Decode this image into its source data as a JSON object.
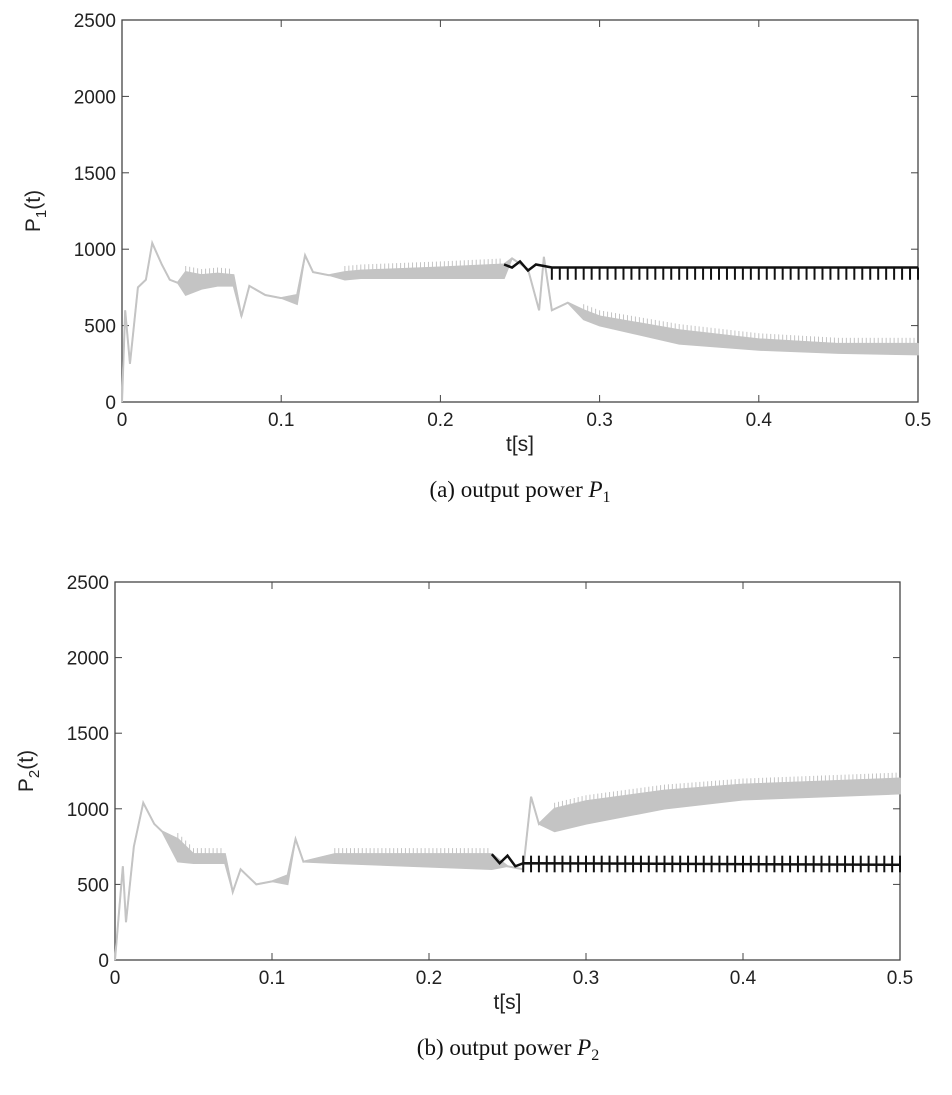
{
  "chart_data": [
    {
      "type": "line",
      "caption": "(a)  output power",
      "caption_symbol": "P",
      "caption_sub": "1",
      "xlabel": "t[s]",
      "ylabel": "P",
      "ylabel_sub": "1",
      "ylabel_suffix": "(t)",
      "xlim": [
        0,
        0.5
      ],
      "ylim": [
        0,
        2500
      ],
      "xticks": [
        "0",
        "0.1",
        "0.2",
        "0.3",
        "0.4",
        "0.5"
      ],
      "yticks": [
        "0",
        "500",
        "1000",
        "1500",
        "2000",
        "2500"
      ],
      "grid": false,
      "colors": {
        "gray_series": "#c4c4c4",
        "black_series": "#111111"
      },
      "series": [
        {
          "color": "gray",
          "points": [
            [
              0,
              0,
              0
            ],
            [
              0.002,
              600,
              600
            ],
            [
              0.005,
              250,
              250
            ],
            [
              0.01,
              750,
              750
            ],
            [
              0.015,
              800,
              800
            ],
            [
              0.019,
              1040,
              1040
            ],
            [
              0.025,
              900,
              900
            ],
            [
              0.03,
              800,
              800
            ],
            [
              0.035,
              780,
              780
            ],
            [
              0.04,
              850,
              700
            ],
            [
              0.05,
              830,
              740
            ],
            [
              0.06,
              840,
              760
            ],
            [
              0.07,
              830,
              760
            ],
            [
              0.075,
              560,
              560
            ],
            [
              0.08,
              760,
              760
            ],
            [
              0.09,
              700,
              700
            ],
            [
              0.1,
              680,
              680
            ],
            [
              0.11,
              700,
              640
            ],
            [
              0.115,
              960,
              960
            ],
            [
              0.12,
              850,
              850
            ],
            [
              0.13,
              830,
              830
            ],
            [
              0.14,
              850,
              800
            ],
            [
              0.15,
              860,
              810
            ],
            [
              0.2,
              880,
              810
            ],
            [
              0.24,
              900,
              810
            ],
            [
              0.245,
              940,
              940
            ],
            [
              0.255,
              870,
              870
            ],
            [
              0.262,
              600,
              600
            ],
            [
              0.265,
              950,
              950
            ],
            [
              0.27,
              600,
              600
            ],
            [
              0.28,
              650,
              650
            ],
            [
              0.29,
              600,
              540
            ],
            [
              0.3,
              560,
              500
            ],
            [
              0.35,
              470,
              380
            ],
            [
              0.4,
              410,
              340
            ],
            [
              0.45,
              380,
              320
            ],
            [
              0.5,
              380,
              310
            ]
          ]
        },
        {
          "color": "black",
          "level": [
            [
              0.24,
              900
            ],
            [
              0.245,
              880
            ],
            [
              0.25,
              920
            ],
            [
              0.255,
              860
            ],
            [
              0.26,
              900
            ],
            [
              0.27,
              880
            ],
            [
              0.5,
              880
            ]
          ],
          "spike_low": 800,
          "spike_start": 0.27,
          "spike_period": 0.005
        }
      ]
    },
    {
      "type": "line",
      "caption": "(b)  output power",
      "caption_symbol": "P",
      "caption_sub": "2",
      "xlabel": "t[s]",
      "ylabel": "P",
      "ylabel_sub": "2",
      "ylabel_suffix": "(t)",
      "xlim": [
        0,
        0.5
      ],
      "ylim": [
        0,
        2500
      ],
      "xticks": [
        "0",
        "0.1",
        "0.2",
        "0.3",
        "0.4",
        "0.5"
      ],
      "yticks": [
        "0",
        "500",
        "1000",
        "1500",
        "2000",
        "2500"
      ],
      "grid": false,
      "colors": {
        "gray_series": "#c4c4c4",
        "black_series": "#111111"
      },
      "series": [
        {
          "color": "gray",
          "points": [
            [
              0,
              0,
              0
            ],
            [
              0.005,
              620,
              620
            ],
            [
              0.007,
              250,
              250
            ],
            [
              0.012,
              750,
              750
            ],
            [
              0.018,
              1040,
              1040
            ],
            [
              0.025,
              900,
              900
            ],
            [
              0.03,
              850,
              850
            ],
            [
              0.04,
              800,
              650
            ],
            [
              0.05,
              700,
              640
            ],
            [
              0.07,
              700,
              640
            ],
            [
              0.075,
              450,
              450
            ],
            [
              0.08,
              600,
              600
            ],
            [
              0.09,
              500,
              500
            ],
            [
              0.1,
              520,
              520
            ],
            [
              0.11,
              560,
              500
            ],
            [
              0.115,
              800,
              800
            ],
            [
              0.12,
              650,
              650
            ],
            [
              0.14,
              700,
              640
            ],
            [
              0.24,
              700,
              600
            ],
            [
              0.25,
              620,
              620
            ],
            [
              0.26,
              600,
              600
            ],
            [
              0.265,
              1080,
              1080
            ],
            [
              0.27,
              900,
              900
            ],
            [
              0.28,
              1000,
              850
            ],
            [
              0.3,
              1050,
              900
            ],
            [
              0.35,
              1120,
              1000
            ],
            [
              0.4,
              1160,
              1060
            ],
            [
              0.45,
              1180,
              1080
            ],
            [
              0.5,
              1200,
              1100
            ]
          ]
        },
        {
          "color": "black",
          "level": [
            [
              0.24,
              700
            ],
            [
              0.245,
              640
            ],
            [
              0.25,
              690
            ],
            [
              0.255,
              620
            ],
            [
              0.26,
              640
            ],
            [
              0.5,
              630
            ]
          ],
          "spike_low": 580,
          "spike_high": 690,
          "spike_start": 0.26,
          "spike_period": 0.005
        }
      ]
    }
  ]
}
